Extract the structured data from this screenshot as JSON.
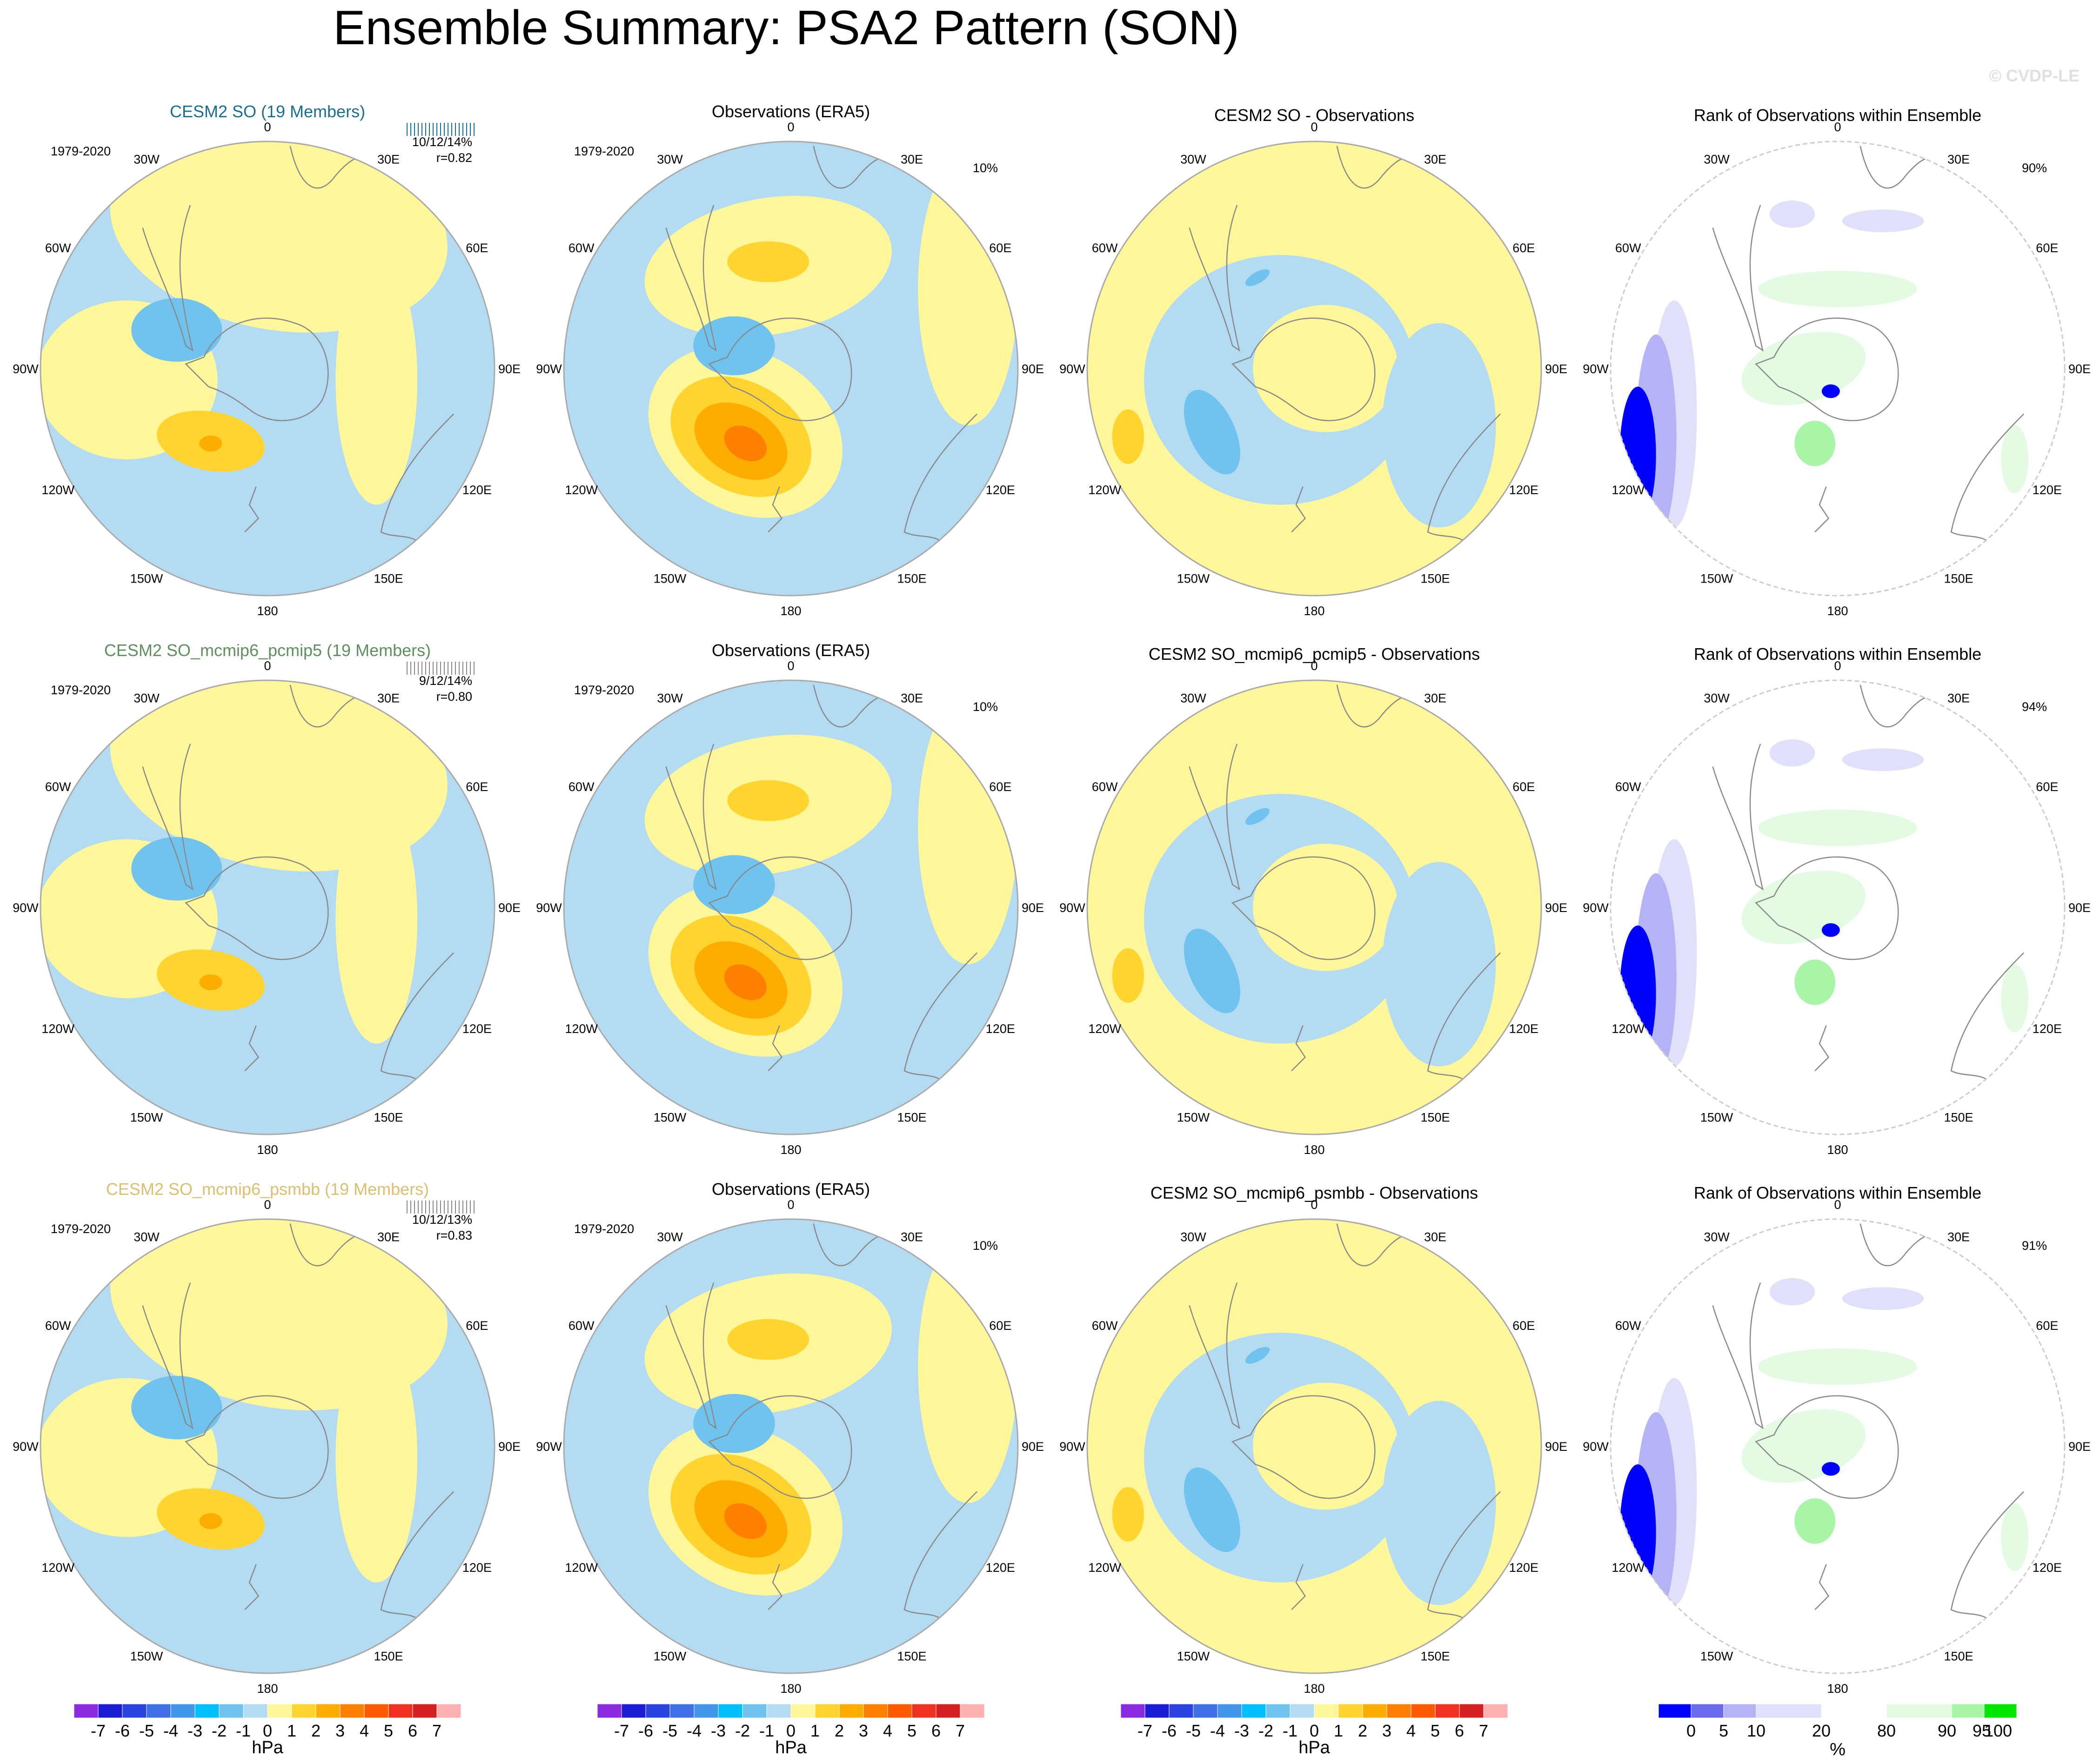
{
  "title": "Ensemble Summary: PSA2 Pattern (SON)",
  "watermark": "© CVDP-LE",
  "colors": {
    "neg7": "#8a2be2",
    "neg6": "#1c1cd6",
    "neg5": "#2b44e0",
    "neg4": "#3e6fe4",
    "neg3": "#3f96ea",
    "neg2": "#00bfff",
    "neg1": "#6fc3ee",
    "neg0": "#b3dcf2",
    "pos0": "#fff799",
    "pos1": "#ffd42e",
    "pos2": "#ffac00",
    "pos3": "#ff8000",
    "pos4": "#ff5a00",
    "pos5": "#f03020",
    "pos6": "#d42020",
    "pos7": "#ffb0b0",
    "rank_0": "#0000ff",
    "rank_5": "#6b6bef",
    "rank_10": "#b3b3f5",
    "rank_20": "#e0e0fa",
    "rank_80": "#ffffff",
    "rank_90": "#e2fbe2",
    "rank_95": "#a8f5a8",
    "rank_100": "#00e600",
    "model1_title": "#1a6f8f",
    "model2_title": "#5f8f5f",
    "model3_title": "#d9c070",
    "coast": "#8a8a8a",
    "border": "#aaaaaa"
  },
  "rows": [
    {
      "model": {
        "title": "CESM2 SO (19 Members)",
        "period": "1979-2020",
        "rank_text": "10/12/14%",
        "corr": "r=0.82"
      },
      "obs": {
        "title": "Observations (ERA5)",
        "period": "1979-2020",
        "pct": "10%"
      },
      "diff": {
        "title": "CESM2 SO - Observations"
      },
      "rank": {
        "title": "Rank of Observations within Ensemble",
        "pct": "90%"
      }
    },
    {
      "model": {
        "title": "CESM2 SO_mcmip6_pcmip5 (19 Members)",
        "period": "1979-2020",
        "rank_text": "9/12/14%",
        "corr": "r=0.80"
      },
      "obs": {
        "title": "Observations (ERA5)",
        "period": "1979-2020",
        "pct": "10%"
      },
      "diff": {
        "title": "CESM2 SO_mcmip6_pcmip5 - Observations"
      },
      "rank": {
        "title": "Rank of Observations within Ensemble",
        "pct": "94%"
      }
    },
    {
      "model": {
        "title": "CESM2 SO_mcmip6_psmbb (19 Members)",
        "period": "1979-2020",
        "rank_text": "10/12/13%",
        "corr": "r=0.83"
      },
      "obs": {
        "title": "Observations (ERA5)",
        "period": "1979-2020",
        "pct": "10%"
      },
      "diff": {
        "title": "CESM2 SO_mcmip6_psmbb - Observations"
      },
      "rank": {
        "title": "Rank of Observations within Ensemble",
        "pct": "91%"
      }
    }
  ],
  "lon_labels": [
    "0",
    "30E",
    "60E",
    "90E",
    "120E",
    "150E",
    "180",
    "150W",
    "120W",
    "90W",
    "60W",
    "30W"
  ],
  "pressure_colorbar": {
    "labels": [
      "-7",
      "-6",
      "-5",
      "-4",
      "-3",
      "-2",
      "-1",
      "0",
      "1",
      "2",
      "3",
      "4",
      "5",
      "6",
      "7"
    ],
    "unit": "hPa"
  },
  "rank_colorbar": {
    "labels": [
      "0",
      "5",
      "10",
      "20",
      "80",
      "90",
      "95",
      "100"
    ],
    "unit": "%"
  }
}
